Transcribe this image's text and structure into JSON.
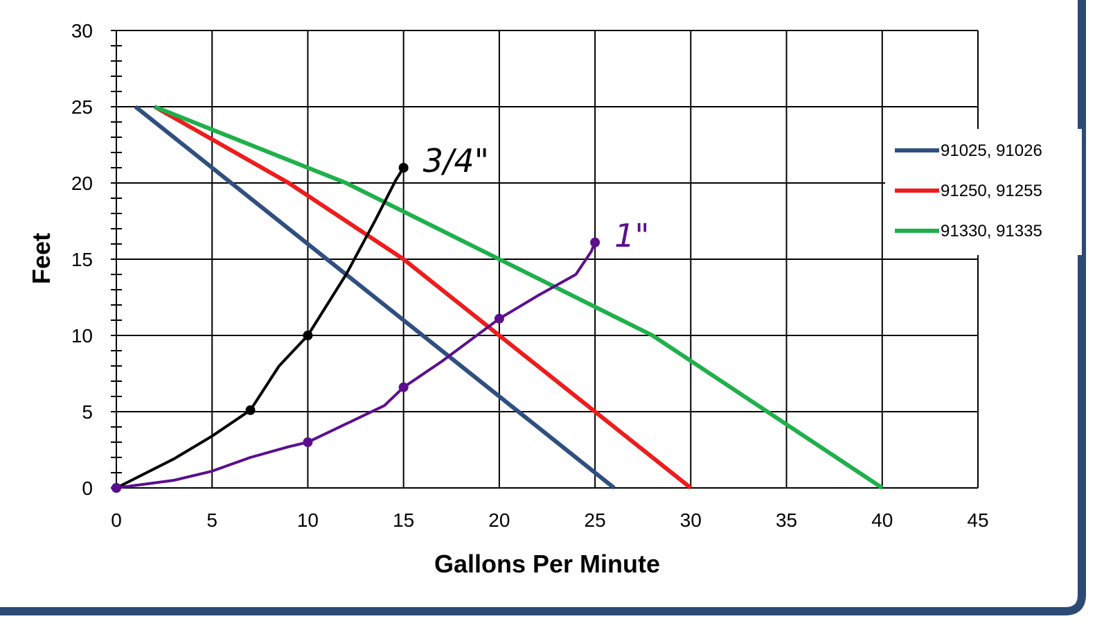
{
  "chart_data": {
    "type": "line",
    "xlabel": "Gallons Per Minute",
    "ylabel": "Feet",
    "xlim": [
      0,
      45
    ],
    "ylim": [
      0,
      30
    ],
    "x_ticks": [
      0,
      5,
      10,
      15,
      20,
      25,
      30,
      35,
      40,
      45
    ],
    "y_ticks": [
      0,
      5,
      10,
      15,
      20,
      25,
      30
    ],
    "grid": true,
    "legend_position": "right",
    "series": [
      {
        "name": "91025, 91026",
        "color": "#2F4F7F",
        "points": [
          [
            1,
            25
          ],
          [
            26,
            0
          ]
        ]
      },
      {
        "name": "91250, 91255",
        "color": "#EE1C1C",
        "points": [
          [
            2,
            25
          ],
          [
            9,
            20
          ],
          [
            15,
            15
          ],
          [
            20,
            10
          ],
          [
            25,
            5
          ],
          [
            30,
            0
          ]
        ]
      },
      {
        "name": "91330, 91335",
        "color": "#1FB04B",
        "points": [
          [
            2,
            25
          ],
          [
            12,
            20
          ],
          [
            20,
            15
          ],
          [
            28,
            10
          ],
          [
            34,
            5
          ],
          [
            40,
            0
          ]
        ]
      }
    ],
    "annotations": [
      {
        "label": "3/4\"",
        "color": "#000000",
        "points": [
          [
            0,
            0
          ],
          [
            3,
            1.9
          ],
          [
            5,
            3.4
          ],
          [
            7,
            5.1
          ],
          [
            8.5,
            8
          ],
          [
            10,
            10
          ],
          [
            12,
            14
          ],
          [
            13.5,
            17.5
          ],
          [
            14.6,
            20.2
          ],
          [
            15,
            21
          ]
        ],
        "markers": [
          [
            0,
            0
          ],
          [
            7,
            5.1
          ],
          [
            10,
            10
          ],
          [
            15,
            21
          ]
        ]
      },
      {
        "label": "1\"",
        "color": "#5B0F8E",
        "points": [
          [
            0,
            0
          ],
          [
            3,
            0.5
          ],
          [
            5,
            1.1
          ],
          [
            7,
            2
          ],
          [
            9,
            2.7
          ],
          [
            10,
            3
          ],
          [
            12,
            4.2
          ],
          [
            14,
            5.4
          ],
          [
            15,
            6.6
          ],
          [
            17,
            8.3
          ],
          [
            20,
            11.1
          ],
          [
            22,
            12.6
          ],
          [
            24,
            14
          ],
          [
            24.8,
            15.5
          ],
          [
            25,
            16.1
          ]
        ],
        "markers": [
          [
            0,
            0
          ],
          [
            10,
            3
          ],
          [
            15,
            6.6
          ],
          [
            20,
            11.1
          ],
          [
            25,
            16.1
          ]
        ]
      }
    ]
  },
  "frame": {
    "border_color": "#2C4A74"
  }
}
